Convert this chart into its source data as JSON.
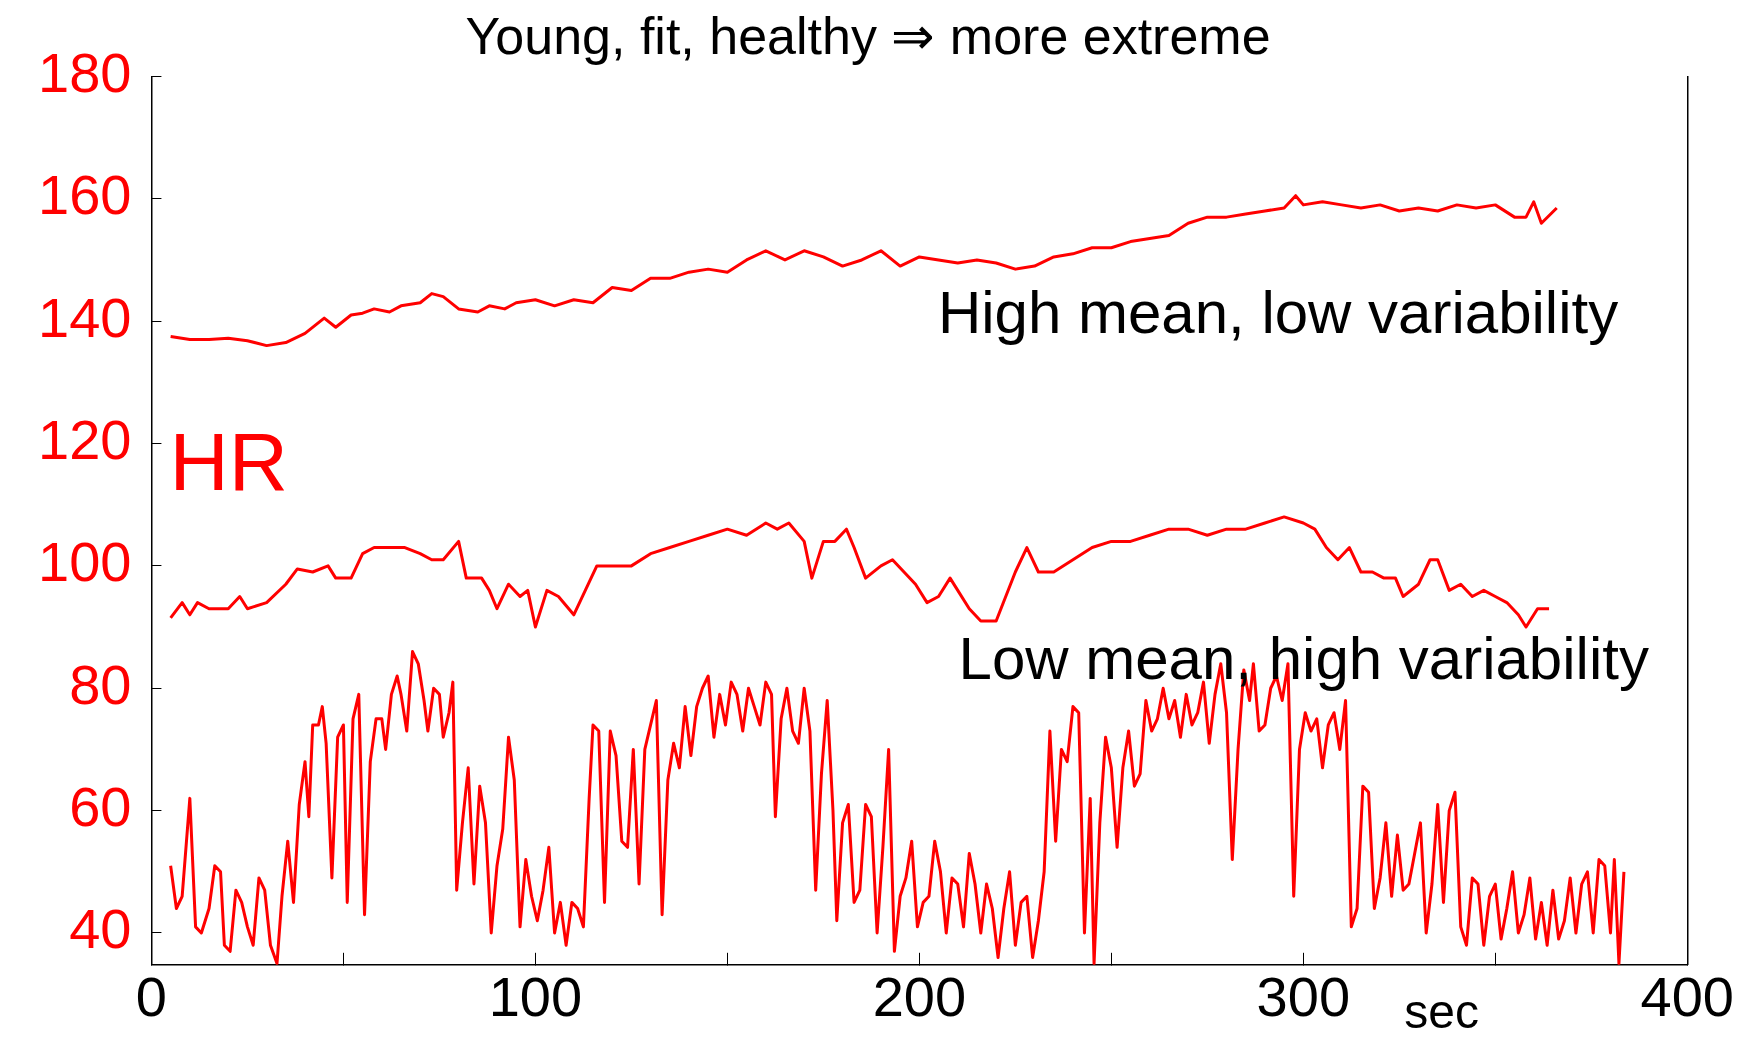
{
  "chart_data": {
    "type": "line",
    "title": "Young, fit, healthy ⇒ more extreme",
    "xlabel": "sec",
    "ylabel": "HR",
    "annotations": [
      "High mean, low variability",
      "Low mean, high variability"
    ],
    "xlim": [
      0,
      400
    ],
    "ylim": [
      34.8,
      180
    ],
    "xticks": [
      0,
      {
        "value": 50,
        "label": null
      },
      100,
      {
        "value": 150,
        "label": null
      },
      200,
      {
        "value": 250,
        "label": null
      },
      300,
      {
        "value": 350,
        "label": null
      },
      400
    ],
    "yticks": [
      40,
      60,
      80,
      100,
      120,
      140,
      160,
      180
    ],
    "grid": false,
    "legend": false,
    "marker": "none",
    "line_style": "solid",
    "series": [
      {
        "color": "#ff0000",
        "x": [
          5,
          10,
          15,
          20,
          25,
          30,
          35,
          40,
          45,
          48,
          52,
          55,
          58,
          62,
          65,
          70,
          73,
          76,
          80,
          85,
          88,
          92,
          95,
          100,
          105,
          110,
          115,
          120,
          125,
          130,
          135,
          140,
          145,
          150,
          155,
          160,
          165,
          170,
          175,
          180,
          185,
          190,
          195,
          200,
          205,
          210,
          215,
          220,
          225,
          230,
          235,
          240,
          245,
          250,
          255,
          260,
          265,
          270,
          275,
          280,
          285,
          290,
          295,
          298,
          300,
          305,
          310,
          315,
          320,
          325,
          330,
          335,
          340,
          345,
          350,
          355,
          358,
          360,
          362,
          366
        ],
        "values": [
          137.5,
          137,
          137,
          137.2,
          136.8,
          136,
          136.5,
          138,
          140.5,
          139,
          141,
          141.3,
          142,
          141.5,
          142.5,
          143,
          144.5,
          144,
          142,
          141.5,
          142.5,
          142,
          143,
          143.5,
          142.5,
          143.5,
          143,
          145.5,
          145,
          147,
          147,
          148,
          148.5,
          148,
          150,
          151.5,
          150,
          151.5,
          150.5,
          149,
          150,
          151.5,
          149,
          150.5,
          150,
          149.5,
          150,
          149.5,
          148.5,
          149,
          150.5,
          151,
          152,
          152,
          153,
          153.5,
          154,
          156,
          157,
          157,
          157.5,
          158,
          158.5,
          160.5,
          159,
          159.5,
          159,
          158.5,
          159,
          158,
          158.5,
          158,
          159,
          158.5,
          159,
          157,
          157,
          159.5,
          156,
          158.5
        ]
      },
      {
        "color": "#ff0000",
        "x": [
          5,
          8,
          10,
          12,
          15,
          20,
          23,
          25,
          30,
          35,
          38,
          42,
          46,
          48,
          52,
          55,
          58,
          62,
          66,
          70,
          73,
          76,
          80,
          82,
          86,
          88,
          90,
          93,
          96,
          98,
          100,
          103,
          106,
          110,
          113,
          116,
          120,
          125,
          130,
          135,
          140,
          145,
          150,
          155,
          160,
          163,
          166,
          170,
          172,
          175,
          178,
          181,
          183,
          186,
          190,
          193,
          196,
          199,
          202,
          205,
          208,
          210,
          213,
          216,
          220,
          225,
          228,
          231,
          235,
          240,
          245,
          250,
          255,
          260,
          265,
          270,
          275,
          280,
          285,
          290,
          295,
          300,
          303,
          306,
          309,
          312,
          315,
          318,
          321,
          324,
          326,
          330,
          333,
          335,
          338,
          341,
          344,
          347,
          350,
          353,
          356,
          358,
          361,
          364
        ],
        "values": [
          91.5,
          94,
          92,
          94,
          93,
          93,
          95,
          93,
          94,
          97,
          99.5,
          99,
          100,
          98,
          98,
          102,
          103,
          103,
          103,
          102,
          101,
          101,
          104,
          98,
          98,
          96,
          93,
          97,
          95,
          96,
          90,
          96,
          95,
          92,
          96,
          100,
          100,
          100,
          102,
          103,
          104,
          105,
          106,
          105,
          107,
          106,
          107,
          104,
          98,
          104,
          104,
          106,
          103,
          98,
          100,
          101,
          99,
          97,
          94,
          95,
          98,
          96,
          93,
          91,
          91,
          99,
          103,
          99,
          99,
          101,
          103,
          104,
          104,
          105,
          106,
          106,
          105,
          106,
          106,
          107,
          108,
          107,
          106,
          103,
          101,
          103,
          99,
          99,
          98,
          98,
          95,
          97,
          101,
          101,
          96,
          97,
          95,
          96,
          95,
          94,
          92,
          90,
          93,
          93
        ]
      },
      {
        "color": "#ff0000",
        "x": [
          5,
          6.5,
          8,
          10,
          11.5,
          13,
          15,
          16.5,
          18,
          19,
          20.5,
          22,
          23.5,
          25,
          26.5,
          28,
          29.5,
          31,
          32.7,
          34,
          35.5,
          37,
          38.5,
          40,
          41,
          42,
          43.5,
          44.5,
          45.5,
          47,
          48.5,
          50,
          51,
          52.5,
          54,
          55.5,
          57,
          58.5,
          60,
          61,
          62.5,
          64,
          65,
          66.5,
          68,
          69.5,
          71,
          72,
          73.5,
          75,
          76,
          77.5,
          78.5,
          79.5,
          81,
          82.5,
          84,
          85.5,
          87,
          88.5,
          90,
          91.5,
          93,
          94.5,
          96,
          97.5,
          99,
          100.5,
          102,
          103.5,
          105,
          106.5,
          108,
          109.5,
          111,
          112.5,
          114,
          115,
          116.5,
          118,
          119.5,
          121,
          122.5,
          124,
          125.5,
          127,
          128.5,
          130,
          131.5,
          133,
          134.5,
          136,
          137.5,
          139,
          140.5,
          142,
          143.5,
          145,
          146.5,
          148,
          149.5,
          151,
          152.5,
          154,
          155.5,
          157,
          158.5,
          160,
          161.5,
          162.5,
          164,
          165.5,
          167,
          168.5,
          170,
          171.5,
          173,
          174.5,
          176,
          177.5,
          178.5,
          180,
          181.5,
          183,
          184.5,
          186,
          187.5,
          189,
          190.5,
          192,
          193.5,
          195,
          196.5,
          198,
          199.5,
          201,
          202.5,
          204,
          205.5,
          207,
          208.5,
          210,
          211.5,
          213,
          214.5,
          216,
          217.5,
          219,
          220.5,
          222,
          223.5,
          225,
          226.5,
          228,
          229.5,
          231,
          232.5,
          234,
          235.5,
          237,
          238.5,
          240,
          241.5,
          243,
          244.5,
          245.5,
          247,
          248.5,
          250,
          251.5,
          253,
          254.5,
          256,
          257.5,
          259,
          260.5,
          262,
          263.5,
          265,
          266.5,
          268,
          269.5,
          271,
          272.5,
          274,
          275.5,
          277,
          278.5,
          280,
          281.5,
          283,
          284.5,
          286,
          287,
          288.5,
          290,
          291.5,
          293,
          294.5,
          296,
          297.5,
          299,
          300.5,
          302,
          303.5,
          305,
          306.5,
          308,
          309.5,
          311,
          312.5,
          314,
          315.5,
          317,
          318.5,
          320,
          321.5,
          323,
          324.5,
          326,
          327.5,
          329,
          330.5,
          332,
          333.5,
          335,
          336.5,
          338,
          339.5,
          341,
          342.5,
          344,
          345.5,
          347,
          348.5,
          350,
          351.5,
          353,
          354.5,
          356,
          357.5,
          359,
          360.5,
          362,
          363.5,
          365,
          366.5,
          368,
          369.5,
          371,
          372.5,
          374,
          375.5,
          377,
          378.5,
          380,
          381,
          382.2,
          383.5
        ],
        "values": [
          51,
          44,
          46,
          62,
          41,
          40,
          44,
          51,
          50,
          38,
          37,
          47,
          45,
          41,
          38,
          49,
          47,
          38,
          35,
          46,
          55,
          45,
          61,
          68,
          59,
          74,
          74,
          77,
          71,
          49,
          72,
          74,
          45,
          75,
          79,
          43,
          68,
          75,
          75,
          70,
          79,
          82,
          79,
          73,
          86,
          84,
          78,
          73,
          80,
          79,
          72,
          76,
          81,
          47,
          58,
          67,
          48,
          64,
          58,
          40,
          51,
          57,
          72,
          65,
          41,
          52,
          46,
          42,
          47,
          54,
          40,
          45,
          38,
          45,
          44,
          41,
          62,
          74,
          73,
          45,
          73,
          69,
          55,
          54,
          70,
          48,
          70,
          74,
          78,
          43,
          65,
          71,
          67,
          77,
          69,
          77,
          80,
          82,
          72,
          79,
          74,
          81,
          79,
          73,
          80,
          77,
          74,
          81,
          79,
          59,
          75,
          80,
          73,
          71,
          80,
          73,
          47,
          66,
          78,
          60,
          42,
          58,
          61,
          45,
          47,
          61,
          59,
          40,
          54,
          70,
          37,
          46,
          49,
          55,
          41,
          45,
          46,
          55,
          50,
          40,
          49,
          48,
          41,
          53,
          48,
          40,
          48,
          44,
          36,
          44,
          50,
          38,
          45,
          46,
          36,
          42,
          50,
          73,
          55,
          70,
          68,
          77,
          76,
          40,
          62,
          35,
          58,
          72,
          67,
          54,
          67,
          73,
          64,
          66,
          78,
          73,
          75,
          80,
          75,
          78,
          72,
          79,
          74,
          76,
          81,
          71,
          79,
          84,
          76,
          52,
          70,
          83,
          78,
          84,
          73,
          74,
          80,
          82,
          78,
          84,
          46,
          70,
          76,
          73,
          75,
          67,
          74,
          76,
          70,
          78,
          41,
          44,
          64,
          63,
          44,
          49,
          58,
          46,
          56,
          47,
          48,
          53,
          58,
          40,
          48,
          61,
          45,
          60,
          63,
          41,
          38,
          49,
          48,
          38,
          46,
          48,
          39,
          44,
          50,
          40,
          43,
          49,
          39,
          45,
          38,
          47,
          39,
          42,
          49,
          40,
          48,
          50,
          40,
          52,
          51,
          40,
          52,
          35,
          50
        ]
      }
    ]
  }
}
